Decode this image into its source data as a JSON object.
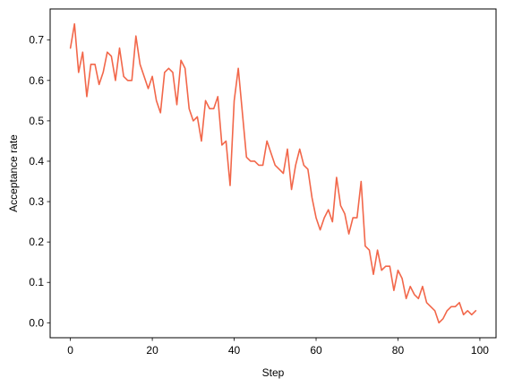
{
  "chart_data": {
    "type": "line",
    "title": "",
    "xlabel": "Step",
    "ylabel": "Acceptance rate",
    "xlim": [
      -4.95,
      103.95
    ],
    "ylim": [
      -0.037,
      0.777
    ],
    "grid": false,
    "legend": "none",
    "x_ticks": [
      0,
      20,
      40,
      60,
      80,
      100
    ],
    "x_tick_labels": [
      "0",
      "20",
      "40",
      "60",
      "80",
      "100"
    ],
    "y_ticks": [
      0.0,
      0.1,
      0.2,
      0.3,
      0.4,
      0.5,
      0.6,
      0.7
    ],
    "y_tick_labels": [
      "0.0",
      "0.1",
      "0.2",
      "0.3",
      "0.4",
      "0.5",
      "0.6",
      "0.7"
    ],
    "series": [
      {
        "color": "#f2674a",
        "x": [
          0,
          1,
          2,
          3,
          4,
          5,
          6,
          7,
          8,
          9,
          10,
          11,
          12,
          13,
          14,
          15,
          16,
          17,
          18,
          19,
          20,
          21,
          22,
          23,
          24,
          25,
          26,
          27,
          28,
          29,
          30,
          31,
          32,
          33,
          34,
          35,
          36,
          37,
          38,
          39,
          40,
          41,
          42,
          43,
          44,
          45,
          46,
          47,
          48,
          49,
          50,
          51,
          52,
          53,
          54,
          55,
          56,
          57,
          58,
          59,
          60,
          61,
          62,
          63,
          64,
          65,
          66,
          67,
          68,
          69,
          70,
          71,
          72,
          73,
          74,
          75,
          76,
          77,
          78,
          79,
          80,
          81,
          82,
          83,
          84,
          85,
          86,
          87,
          88,
          89,
          90,
          91,
          92,
          93,
          94,
          95,
          96,
          97,
          98,
          99
        ],
        "y": [
          0.68,
          0.74,
          0.62,
          0.67,
          0.56,
          0.64,
          0.64,
          0.59,
          0.62,
          0.67,
          0.66,
          0.6,
          0.68,
          0.61,
          0.6,
          0.6,
          0.71,
          0.64,
          0.61,
          0.58,
          0.61,
          0.55,
          0.52,
          0.62,
          0.63,
          0.62,
          0.54,
          0.65,
          0.63,
          0.53,
          0.5,
          0.51,
          0.45,
          0.55,
          0.53,
          0.53,
          0.56,
          0.44,
          0.45,
          0.34,
          0.55,
          0.63,
          0.52,
          0.41,
          0.4,
          0.4,
          0.39,
          0.39,
          0.45,
          0.42,
          0.39,
          0.38,
          0.37,
          0.43,
          0.33,
          0.39,
          0.43,
          0.39,
          0.38,
          0.31,
          0.26,
          0.23,
          0.26,
          0.28,
          0.25,
          0.36,
          0.29,
          0.27,
          0.22,
          0.26,
          0.26,
          0.35,
          0.19,
          0.18,
          0.12,
          0.18,
          0.13,
          0.14,
          0.14,
          0.08,
          0.13,
          0.11,
          0.06,
          0.09,
          0.07,
          0.06,
          0.09,
          0.05,
          0.04,
          0.03,
          0.0,
          0.01,
          0.03,
          0.04,
          0.04,
          0.05,
          0.02,
          0.03,
          0.02,
          0.03
        ]
      }
    ]
  }
}
